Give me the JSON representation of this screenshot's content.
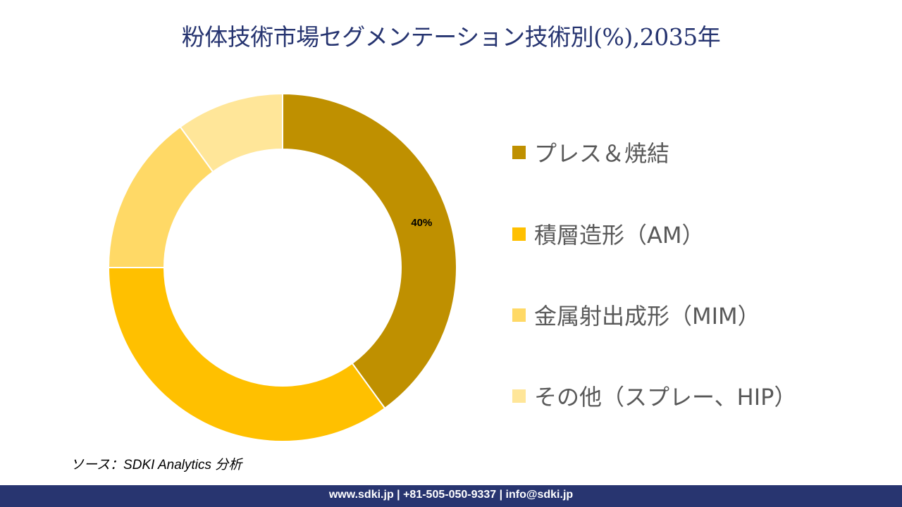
{
  "title": "粉体技術市場セグメンテーション技術別(%),2035年",
  "chart_data": {
    "type": "pie",
    "variant": "donut",
    "title": "粉体技術市場セグメンテーション技術別(%),2035年",
    "categories": [
      "プレス＆焼結",
      "積層造形（AM）",
      "金属射出成形（MIM）",
      "その他（スプレー、HIP）"
    ],
    "values": [
      40,
      35,
      15,
      10
    ],
    "colors": [
      "#BF9000",
      "#FFC000",
      "#FFD966",
      "#FFE699"
    ],
    "data_labels": [
      "40%",
      "",
      "",
      ""
    ],
    "legend_position": "right"
  },
  "source": "ソース：SDKI Analytics 分析",
  "footer": "www.sdki.jp | +81-505-050-9337 | info@sdki.jp"
}
